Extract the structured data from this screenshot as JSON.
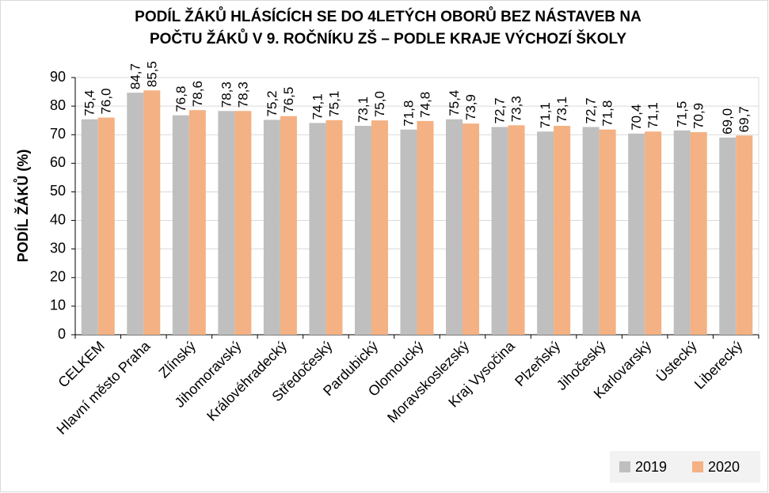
{
  "chart_data": {
    "type": "bar",
    "title": [
      "PODÍL  ŽÁKŮ HLÁSÍCÍCH SE DO 4LETÝCH OBORŮ BEZ NÁSTAVEB NA",
      "POČTU ŽÁKŮ V 9. ROČNÍKU ZŠ – PODLE KRAJE VÝCHOZÍ ŠKOLY"
    ],
    "y_label": "PODÍL ŽÁKŮ (%)",
    "categories": [
      "CELKEM",
      "Hlavní město Praha",
      "Zlínský",
      "Jihomoravský",
      "Královéhradecký",
      "Středočeský",
      "Pardubický",
      "Olomoucký",
      "Moravskoslezský",
      "Kraj Vysočina",
      "Plzeňský",
      "Jihočeský",
      "Karlovarský",
      "Ústecký",
      "Liberecký"
    ],
    "series": [
      {
        "name": "2019",
        "color": "#bfbfbf",
        "values": [
          75.4,
          84.7,
          76.8,
          78.3,
          75.2,
          74.1,
          73.1,
          71.8,
          75.4,
          72.7,
          71.1,
          72.7,
          70.4,
          71.5,
          69.0
        ],
        "value_labels": [
          "75,4",
          "84,7",
          "76,8",
          "78,3",
          "75,2",
          "74,1",
          "73,1",
          "71,8",
          "75,4",
          "72,7",
          "71,1",
          "72,7",
          "70,4",
          "71,5",
          "69,0"
        ]
      },
      {
        "name": "2020",
        "color": "#f4b183",
        "values": [
          76.0,
          85.5,
          78.6,
          78.3,
          76.5,
          75.1,
          75.0,
          74.8,
          73.9,
          73.3,
          73.1,
          71.8,
          71.1,
          70.9,
          69.7
        ],
        "value_labels": [
          "76,0",
          "85,5",
          "78,6",
          "78,3",
          "76,5",
          "75,1",
          "75,0",
          "74,8",
          "73,9",
          "73,3",
          "73,1",
          "71,8",
          "71,1",
          "70,9",
          "69,7"
        ]
      }
    ],
    "ylim": [
      0,
      90
    ],
    "yticks": [
      0,
      10,
      20,
      30,
      40,
      50,
      60,
      70,
      80,
      90
    ],
    "grid": true,
    "legend": "bottom-right"
  }
}
